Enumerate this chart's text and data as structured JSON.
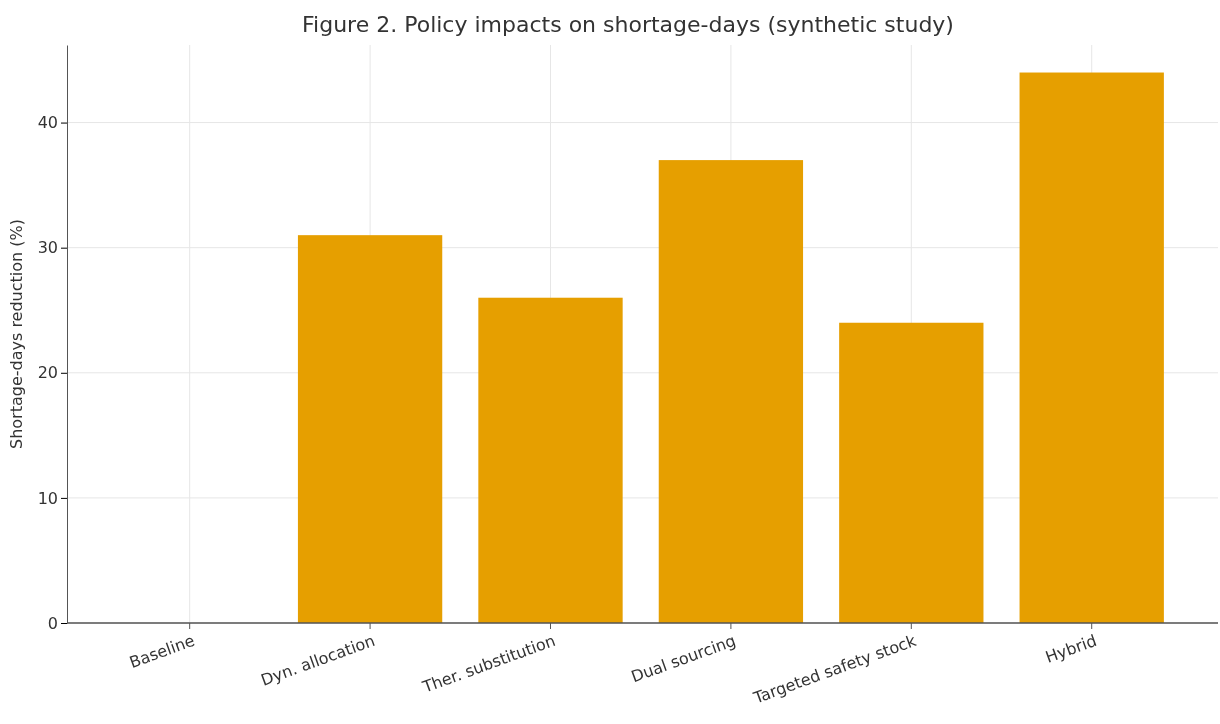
{
  "chart_data": {
    "type": "bar",
    "title": "Figure 2. Policy impacts on shortage-days (synthetic study)",
    "ylabel": "Shortage-days reduction (%)",
    "categories": [
      "Baseline",
      "Dyn. allocation",
      "Ther. substitution",
      "Dual sourcing",
      "Targeted safety stock",
      "Hybrid"
    ],
    "values": [
      0,
      31,
      26,
      37,
      24,
      44
    ],
    "color": "#e69f00",
    "ylim": [
      0,
      46.2
    ],
    "yticks": [
      0,
      10,
      20,
      30,
      40
    ],
    "grid": true
  }
}
